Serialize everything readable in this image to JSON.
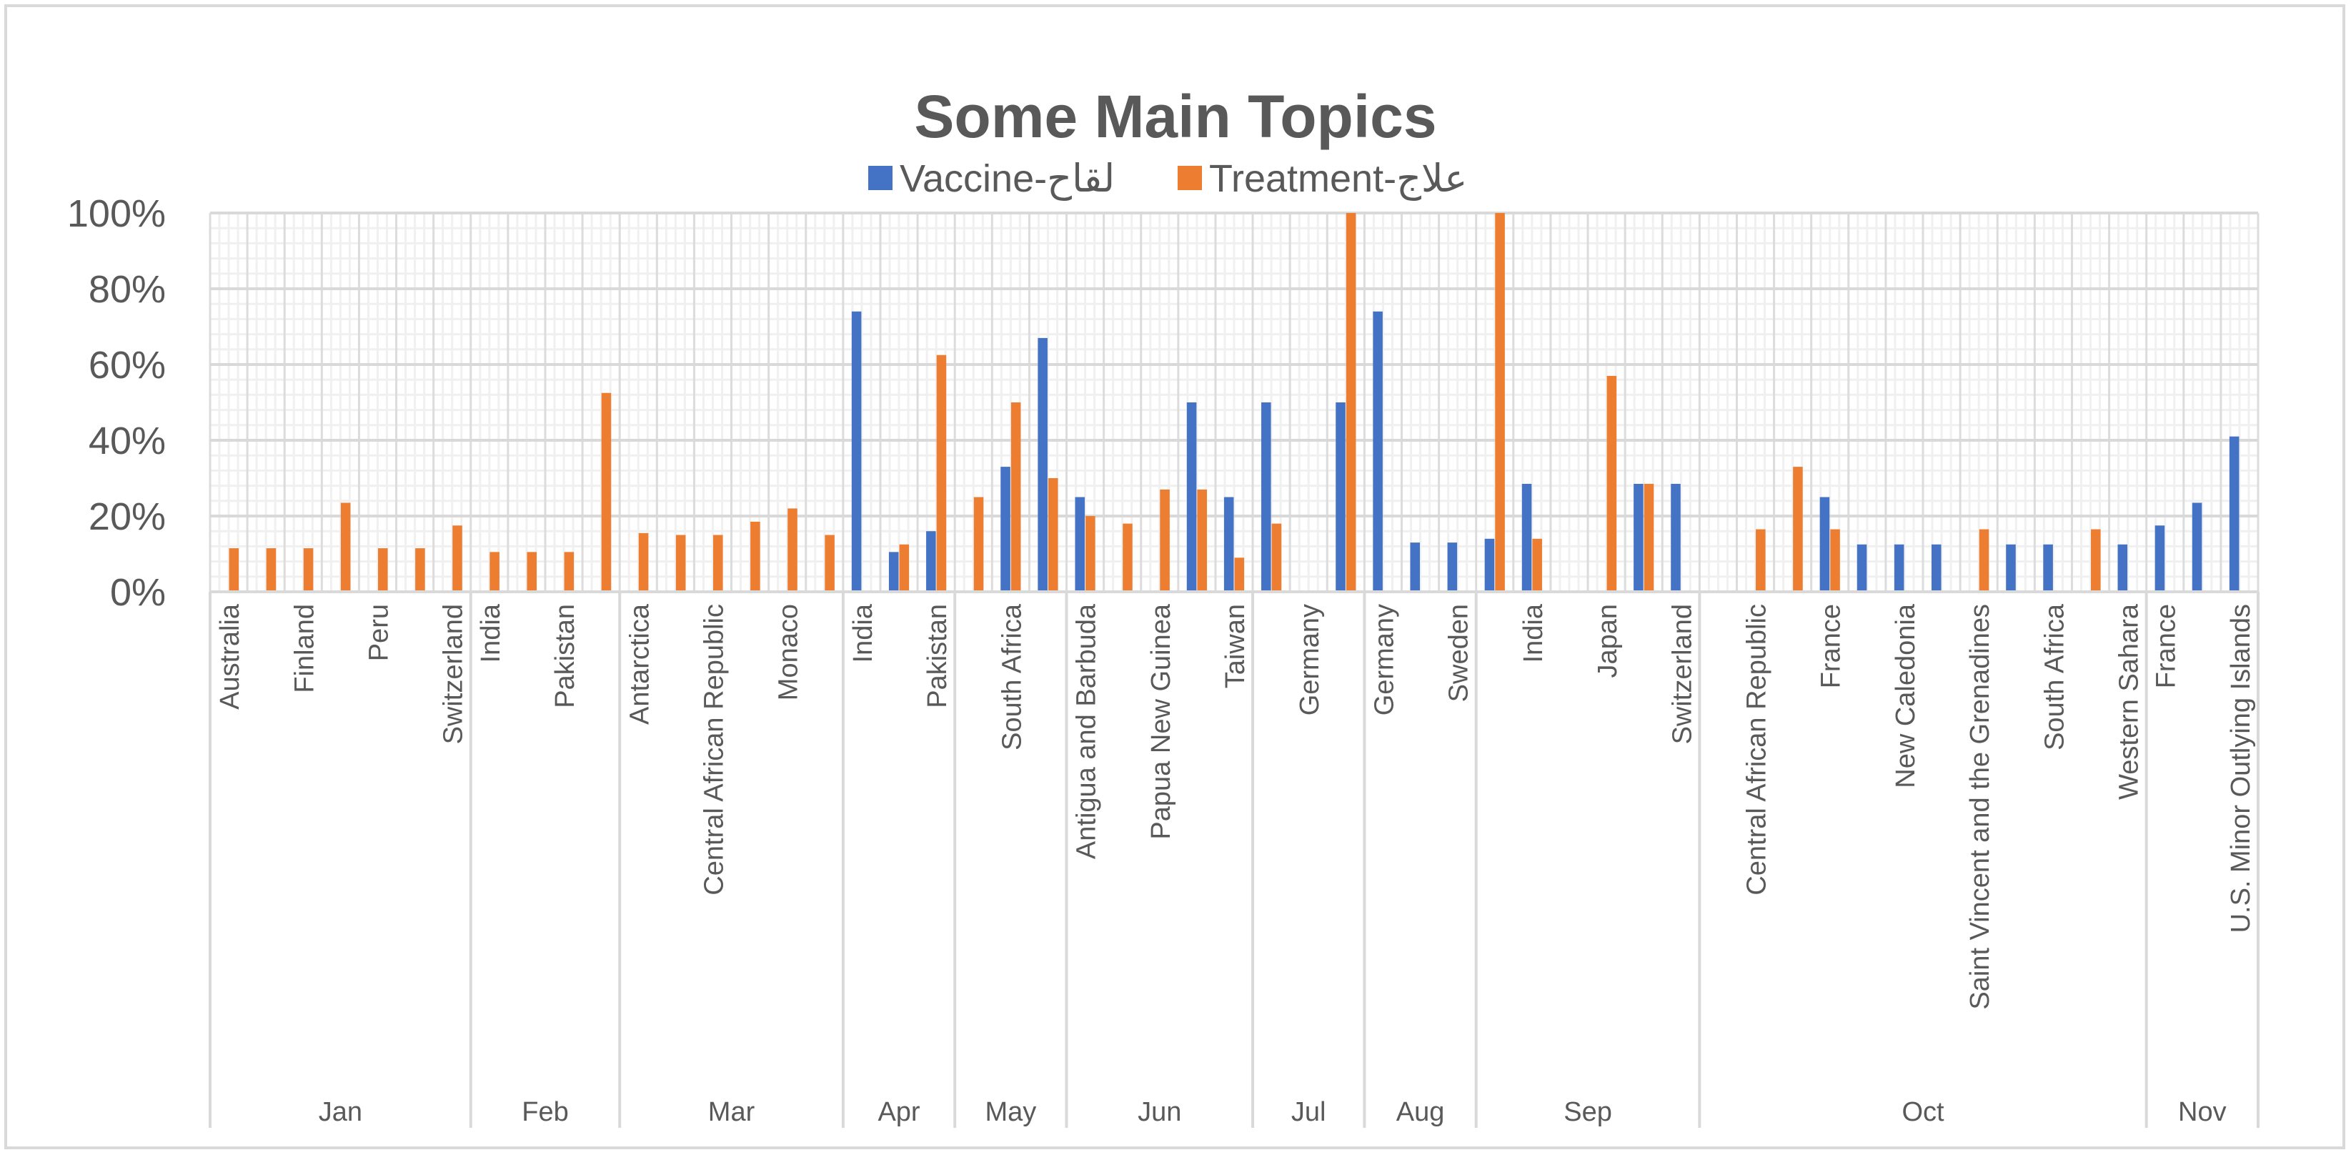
{
  "chart_data": {
    "type": "bar",
    "title": "Some Main Topics",
    "xlabel": "",
    "ylabel": "",
    "ylim": [
      0,
      1
    ],
    "y_tick_labels": [
      "0%",
      "20%",
      "40%",
      "60%",
      "80%",
      "100%"
    ],
    "y_format": "percent",
    "grid": true,
    "legend_position": "top",
    "categories": [
      "Australia",
      "",
      "Finland",
      "",
      "Peru",
      "",
      "Switzerland",
      "India",
      "",
      "Pakistan",
      "",
      "Antarctica",
      "",
      "Central African Republic",
      "",
      "Monaco",
      "",
      "India",
      "",
      "Pakistan",
      "",
      "South Africa",
      "",
      "Antigua and Barbuda",
      "",
      "Papua New Guinea",
      "",
      "Taiwan",
      "",
      "Germany",
      "",
      "Germany",
      "",
      "Sweden",
      "",
      "India",
      "",
      "Japan",
      "",
      "Switzerland",
      "",
      "Central African Republic",
      "",
      "France",
      "",
      "New Caledonia",
      "",
      "Saint Vincent and the Grenadines",
      "",
      "South Africa",
      "",
      "Western Sahara",
      "France",
      "",
      "U.S. Minor Outlying Islands"
    ],
    "groups": [
      {
        "label": "Jan",
        "count": 7
      },
      {
        "label": "Feb",
        "count": 4
      },
      {
        "label": "Mar",
        "count": 6
      },
      {
        "label": "Apr",
        "count": 3
      },
      {
        "label": "May",
        "count": 3
      },
      {
        "label": "Jun",
        "count": 5
      },
      {
        "label": "Jul",
        "count": 3
      },
      {
        "label": "Aug",
        "count": 3
      },
      {
        "label": "Sep",
        "count": 6
      },
      {
        "label": "Oct",
        "count": 12
      },
      {
        "label": "Nov",
        "count": 3
      }
    ],
    "series": [
      {
        "name": "Vaccine-لقاح",
        "color": "#4472c4",
        "values": [
          0,
          0,
          0,
          0,
          0,
          0,
          0,
          0,
          0,
          0,
          0,
          0,
          0,
          0,
          0,
          0,
          0,
          0.74,
          0.105,
          0.16,
          0,
          0.33,
          0.67,
          0.25,
          0,
          0,
          0.5,
          0.25,
          0.5,
          0,
          0.5,
          0.74,
          0.13,
          0.13,
          0.14,
          0.285,
          0,
          0,
          0.285,
          0.285,
          0,
          0,
          0,
          0.25,
          0.125,
          0.125,
          0.125,
          0,
          0.125,
          0.125,
          0,
          0.125,
          0.175,
          0.235,
          0.41
        ]
      },
      {
        "name": "Treatment-علاج",
        "color": "#ed7d31",
        "values": [
          0.115,
          0.115,
          0.115,
          0.235,
          0.115,
          0.115,
          0.175,
          0.105,
          0.105,
          0.105,
          0.525,
          0.155,
          0.15,
          0.15,
          0.185,
          0.22,
          0.15,
          0,
          0.125,
          0.625,
          0.25,
          0.5,
          0.3,
          0.2,
          0.18,
          0.27,
          0.27,
          0.09,
          0.18,
          0,
          1.0,
          0,
          0,
          0,
          1.0,
          0.14,
          0,
          0.57,
          0.285,
          0,
          0,
          0.165,
          0.33,
          0.165,
          0,
          0,
          0,
          0.165,
          0,
          0,
          0.165,
          0,
          0,
          0,
          0
        ]
      }
    ]
  }
}
